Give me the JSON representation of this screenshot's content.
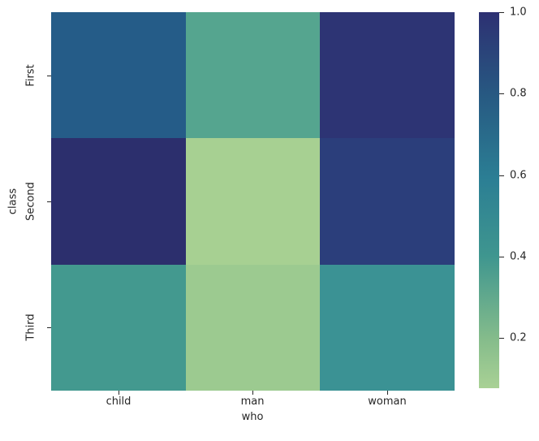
{
  "chart_data": {
    "type": "heatmap",
    "title": "",
    "xlabel": "who",
    "ylabel": "class",
    "x_ticklabels": [
      "child",
      "man",
      "woman"
    ],
    "y_ticklabels": [
      "First",
      "Second",
      "Third"
    ],
    "rows_meaning": "class (First, Second, Third)",
    "columns_meaning": "who (child, man, woman)",
    "values": [
      [
        0.83,
        0.35,
        0.98
      ],
      [
        1.0,
        0.08,
        0.91
      ],
      [
        0.43,
        0.12,
        0.49
      ]
    ],
    "cell_colors": [
      [
        "#255c88",
        "#55a58f",
        "#2d3474"
      ],
      [
        "#2c2f6d",
        "#a7d092",
        "#2b3e7b"
      ],
      [
        "#43998f",
        "#9cca90",
        "#3b9294"
      ]
    ],
    "colormap": "crest",
    "grid": false,
    "legend_position": "right-colorbar",
    "colorbar": {
      "vmin": 0.077,
      "vmax": 1.0,
      "ticks": [
        "1.0",
        "0.8",
        "0.6",
        "0.4",
        "0.2"
      ],
      "tick_values": [
        1.0,
        0.8,
        0.6,
        0.4,
        0.2
      ],
      "gradient": [
        {
          "pos": 0.0,
          "color": "#a9d195"
        },
        {
          "pos": 0.13,
          "color": "#85bc8b"
        },
        {
          "pos": 0.35,
          "color": "#3f968f"
        },
        {
          "pos": 0.56,
          "color": "#2b7e94"
        },
        {
          "pos": 0.78,
          "color": "#275982"
        },
        {
          "pos": 1.0,
          "color": "#2d3072"
        }
      ]
    },
    "text_color": "#262626"
  }
}
